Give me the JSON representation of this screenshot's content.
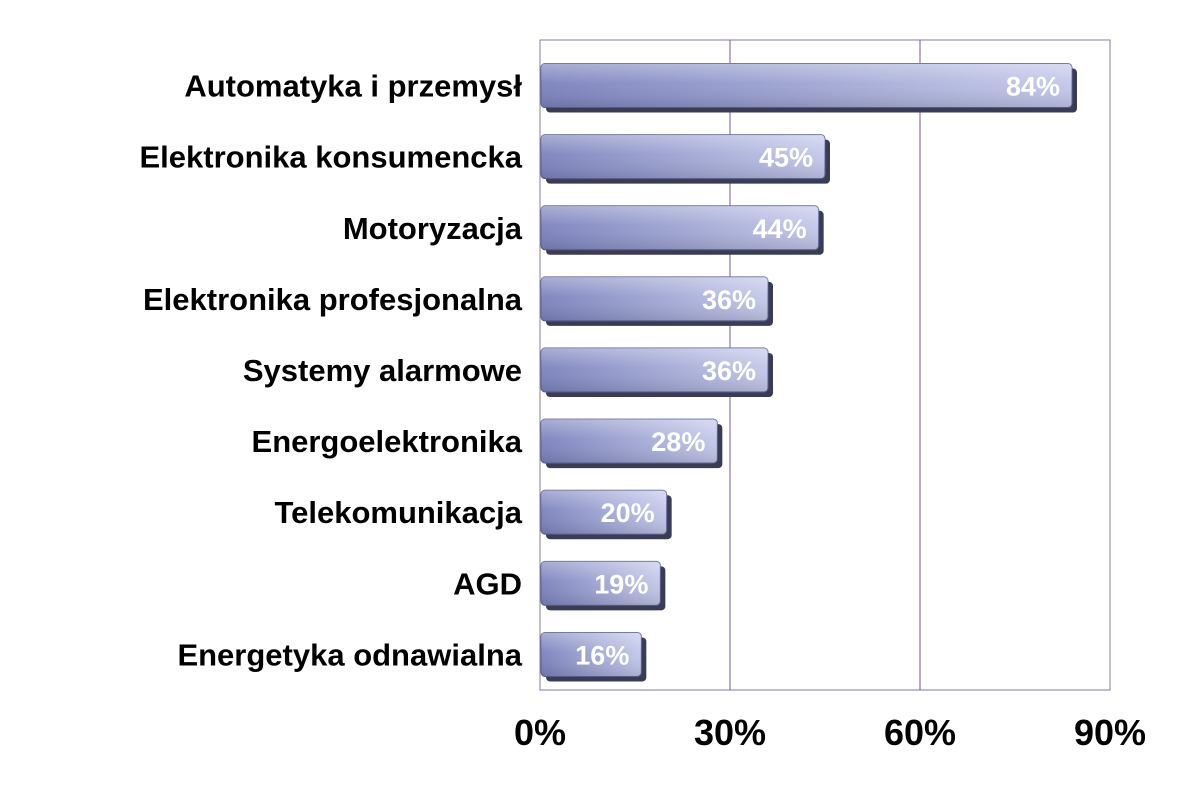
{
  "chart_data": {
    "type": "bar",
    "orientation": "horizontal",
    "categories": [
      "Automatyka i przemysł",
      "Elektronika konsumencka",
      "Motoryzacja",
      "Elektronika profesjonalna",
      "Systemy alarmowe",
      "Energoelektronika",
      "Telekomunikacja",
      "AGD",
      "Energetyka odnawialna"
    ],
    "values": [
      84,
      45,
      44,
      36,
      36,
      28,
      20,
      19,
      16
    ],
    "data_labels": [
      "84%",
      "45%",
      "44%",
      "36%",
      "36%",
      "28%",
      "20%",
      "19%",
      "16%"
    ],
    "xlim": [
      0,
      90
    ],
    "x_ticks": [
      0,
      30,
      60,
      90
    ],
    "x_tick_labels": [
      "0%",
      "30%",
      "60%",
      "90%"
    ],
    "grid": "vertical",
    "legend": "none",
    "title": "",
    "xlabel": "",
    "ylabel": "",
    "colors": {
      "bar_dark": "#7b82bd",
      "bar_light": "#c3c8ea",
      "bar_shadow": "#3a3c55",
      "gridline": "#7b5a8c",
      "plot_border": "#8a7aa0",
      "plot_bg": "#ffffff",
      "label_text": "#000000",
      "data_label_text": "#ffffff"
    }
  }
}
